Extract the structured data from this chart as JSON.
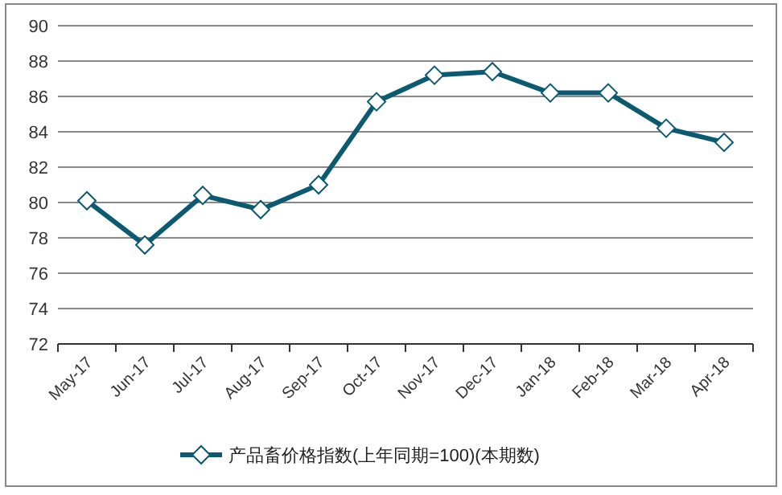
{
  "chart_data": {
    "type": "line",
    "categories": [
      "May-17",
      "Jun-17",
      "Jul-17",
      "Aug-17",
      "Sep-17",
      "Oct-17",
      "Nov-17",
      "Dec-17",
      "Jan-18",
      "Feb-18",
      "Mar-18",
      "Apr-18"
    ],
    "series": [
      {
        "name": "产品畜价格指数(上年同期=100)(本期数)",
        "color": "#0b5a72",
        "values": [
          80.1,
          77.6,
          80.4,
          79.6,
          81.0,
          85.7,
          87.2,
          87.4,
          86.2,
          86.2,
          84.2,
          83.4
        ]
      }
    ],
    "ylim": [
      72,
      90
    ],
    "yticks": [
      72,
      74,
      76,
      78,
      80,
      82,
      84,
      86,
      88,
      90
    ],
    "grid": "y",
    "legend": "bottom",
    "marker": "diamond",
    "line_style": "solid"
  }
}
